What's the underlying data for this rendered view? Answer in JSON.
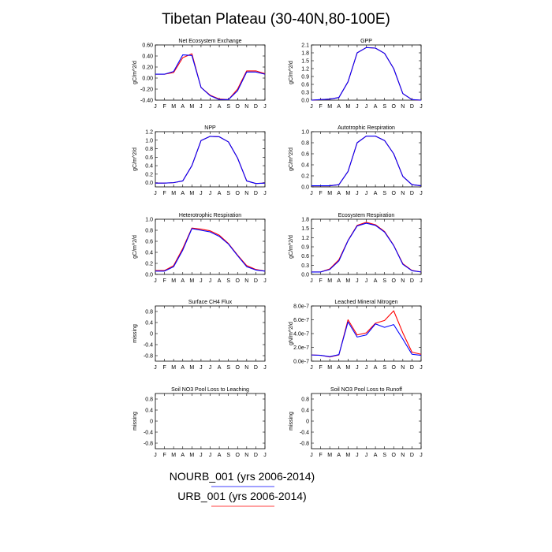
{
  "title": "Tibetan Plateau (30-40N,80-100E)",
  "colors": {
    "series_blue": "#0000ff",
    "series_red": "#ff0000",
    "axis": "#000000"
  },
  "legend": {
    "placement": "bottom-center",
    "entries": [
      {
        "label": "NOURB_001 (yrs 2006-2014)",
        "color": "#0000ff"
      },
      {
        "label": "URB_001 (yrs 2006-2014)",
        "color": "#ff0000"
      }
    ]
  },
  "chart_data": [
    {
      "type": "line",
      "title": "Net Ecosystem Exchange",
      "ylabel": "gC/m^2/d",
      "categories": [
        "J",
        "F",
        "M",
        "A",
        "M",
        "J",
        "J",
        "A",
        "S",
        "O",
        "N",
        "D",
        "J"
      ],
      "ylim": [
        -0.4,
        0.6
      ],
      "yticks": [
        "-0.40",
        "-0.20",
        "0.00",
        "0.20",
        "0.40",
        "0.60"
      ],
      "ytick_values": [
        -0.4,
        -0.2,
        0.0,
        0.2,
        0.4,
        0.6
      ],
      "series": [
        {
          "name": "NOURB_001 (yrs 2006-2014)",
          "color": "#0000ff",
          "values": [
            0.07,
            0.07,
            0.12,
            0.42,
            0.41,
            -0.17,
            -0.32,
            -0.39,
            -0.39,
            -0.23,
            0.11,
            0.11,
            0.07
          ]
        },
        {
          "name": "URB_001 (yrs 2006-2014)",
          "color": "#ff0000",
          "values": [
            0.07,
            0.07,
            0.1,
            0.37,
            0.44,
            -0.17,
            -0.31,
            -0.38,
            -0.39,
            -0.2,
            0.13,
            0.13,
            0.08
          ]
        }
      ]
    },
    {
      "type": "line",
      "title": "GPP",
      "ylabel": "gC/m^2/d",
      "categories": [
        "J",
        "F",
        "M",
        "A",
        "M",
        "J",
        "J",
        "A",
        "S",
        "O",
        "N",
        "D",
        "J"
      ],
      "ylim": [
        0.0,
        2.1
      ],
      "yticks": [
        "0.0",
        "0.3",
        "0.6",
        "0.9",
        "1.2",
        "1.5",
        "1.8",
        "2.1"
      ],
      "ytick_values": [
        0,
        0.3,
        0.6,
        0.9,
        1.2,
        1.5,
        1.8,
        2.1
      ],
      "series": [
        {
          "name": "NOURB_001 (yrs 2006-2014)",
          "color": "#0000ff",
          "values": [
            0.0,
            0.02,
            0.04,
            0.1,
            0.7,
            1.8,
            2.0,
            1.98,
            1.78,
            1.2,
            0.25,
            0.02,
            0.0
          ]
        },
        {
          "name": "URB_001 (yrs 2006-2014)",
          "color": "#ff0000",
          "values": [
            0.0,
            0.02,
            0.04,
            0.1,
            0.7,
            1.8,
            2.0,
            1.98,
            1.78,
            1.2,
            0.25,
            0.02,
            0.0
          ]
        }
      ]
    },
    {
      "type": "line",
      "title": "NPP",
      "ylabel": "gC/m^2/d",
      "categories": [
        "J",
        "F",
        "M",
        "A",
        "M",
        "J",
        "J",
        "A",
        "S",
        "O",
        "N",
        "D",
        "J"
      ],
      "ylim": [
        -0.1,
        1.2
      ],
      "yticks": [
        "0.0",
        "0.2",
        "0.4",
        "0.6",
        "0.8",
        "1.0",
        "1.2"
      ],
      "ytick_values": [
        0,
        0.2,
        0.4,
        0.6,
        0.8,
        1.0,
        1.2
      ],
      "series": [
        {
          "name": "NOURB_001 (yrs 2006-2014)",
          "color": "#0000ff",
          "values": [
            -0.01,
            -0.01,
            0.0,
            0.04,
            0.4,
            0.99,
            1.09,
            1.08,
            0.96,
            0.58,
            0.04,
            -0.02,
            -0.01
          ]
        },
        {
          "name": "URB_001 (yrs 2006-2014)",
          "color": "#ff0000",
          "values": [
            -0.01,
            -0.01,
            0.0,
            0.04,
            0.4,
            0.99,
            1.09,
            1.08,
            0.96,
            0.58,
            0.04,
            -0.02,
            -0.01
          ]
        }
      ]
    },
    {
      "type": "line",
      "title": "Autotrophic Respiration",
      "ylabel": "gC/m^2/d",
      "categories": [
        "J",
        "F",
        "M",
        "A",
        "M",
        "J",
        "J",
        "A",
        "S",
        "O",
        "N",
        "D",
        "J"
      ],
      "ylim": [
        0.0,
        1.0
      ],
      "yticks": [
        "0.0",
        "0.2",
        "0.4",
        "0.6",
        "0.8",
        "1.0"
      ],
      "ytick_values": [
        0,
        0.2,
        0.4,
        0.6,
        0.8,
        1.0
      ],
      "series": [
        {
          "name": "NOURB_001 (yrs 2006-2014)",
          "color": "#0000ff",
          "values": [
            0.02,
            0.02,
            0.02,
            0.04,
            0.28,
            0.8,
            0.92,
            0.92,
            0.84,
            0.6,
            0.19,
            0.04,
            0.02
          ]
        },
        {
          "name": "URB_001 (yrs 2006-2014)",
          "color": "#ff0000",
          "values": [
            0.02,
            0.02,
            0.02,
            0.04,
            0.28,
            0.8,
            0.92,
            0.92,
            0.84,
            0.6,
            0.19,
            0.04,
            0.02
          ]
        }
      ]
    },
    {
      "type": "line",
      "title": "Heterotrophic Respiration",
      "ylabel": "gC/m^2/d",
      "categories": [
        "J",
        "F",
        "M",
        "A",
        "M",
        "J",
        "J",
        "A",
        "S",
        "O",
        "N",
        "D",
        "J"
      ],
      "ylim": [
        0.0,
        1.0
      ],
      "yticks": [
        "0.0",
        "0.2",
        "0.4",
        "0.6",
        "0.8",
        "1.0"
      ],
      "ytick_values": [
        0,
        0.2,
        0.4,
        0.6,
        0.8,
        1.0
      ],
      "series": [
        {
          "name": "NOURB_001 (yrs 2006-2014)",
          "color": "#0000ff",
          "values": [
            0.06,
            0.06,
            0.14,
            0.44,
            0.83,
            0.8,
            0.77,
            0.69,
            0.55,
            0.34,
            0.14,
            0.08,
            0.06
          ]
        },
        {
          "name": "URB_001 (yrs 2006-2014)",
          "color": "#ff0000",
          "values": [
            0.07,
            0.07,
            0.16,
            0.47,
            0.84,
            0.82,
            0.79,
            0.71,
            0.56,
            0.35,
            0.16,
            0.09,
            0.06
          ]
        }
      ]
    },
    {
      "type": "line",
      "title": "Ecosystem Respiration",
      "ylabel": "gC/m^2/d",
      "categories": [
        "J",
        "F",
        "M",
        "A",
        "M",
        "J",
        "J",
        "A",
        "S",
        "O",
        "N",
        "D",
        "J"
      ],
      "ylim": [
        0.0,
        1.8
      ],
      "yticks": [
        "0.0",
        "0.3",
        "0.6",
        "0.9",
        "1.2",
        "1.5",
        "1.8"
      ],
      "ytick_values": [
        0,
        0.3,
        0.6,
        0.9,
        1.2,
        1.5,
        1.8
      ],
      "series": [
        {
          "name": "NOURB_001 (yrs 2006-2014)",
          "color": "#0000ff",
          "values": [
            0.08,
            0.08,
            0.16,
            0.44,
            1.1,
            1.58,
            1.67,
            1.6,
            1.38,
            0.94,
            0.33,
            0.12,
            0.08
          ]
        },
        {
          "name": "URB_001 (yrs 2006-2014)",
          "color": "#ff0000",
          "values": [
            0.08,
            0.08,
            0.18,
            0.48,
            1.11,
            1.6,
            1.7,
            1.62,
            1.4,
            0.95,
            0.35,
            0.13,
            0.08
          ]
        }
      ]
    },
    {
      "type": "line",
      "title": "Surface CH4 Flux",
      "ylabel": "missing",
      "categories": [
        "J",
        "F",
        "M",
        "A",
        "M",
        "J",
        "J",
        "A",
        "S",
        "O",
        "N",
        "D",
        "J"
      ],
      "ylim": [
        -1.0,
        1.0
      ],
      "yticks": [
        "-0.8",
        "-0.4",
        "0",
        "0.4",
        "0.8"
      ],
      "ytick_values": [
        -0.8,
        -0.4,
        0,
        0.4,
        0.8
      ],
      "series": []
    },
    {
      "type": "line",
      "title": "Leached Mineral Nitrogen",
      "ylabel": "gN/m^2/d",
      "categories": [
        "J",
        "F",
        "M",
        "A",
        "M",
        "J",
        "J",
        "A",
        "S",
        "O",
        "N",
        "D",
        "J"
      ],
      "ylim": [
        0.0,
        8e-07
      ],
      "yticks": [
        "0.0e-7",
        "2.0e-7",
        "4.0e-7",
        "6.0e-7",
        "8.0e-7"
      ],
      "ytick_values": [
        0,
        2e-07,
        4e-07,
        6e-07,
        8e-07
      ],
      "series": [
        {
          "name": "NOURB_001 (yrs 2006-2014)",
          "color": "#0000ff",
          "values": [
            9e-08,
            8.5e-08,
            6.5e-08,
            9.5e-08,
            5.7e-07,
            3.5e-07,
            3.8e-07,
            5.4e-07,
            4.9e-07,
            5.3e-07,
            3.2e-07,
            1e-07,
            8.5e-08
          ]
        },
        {
          "name": "URB_001 (yrs 2006-2014)",
          "color": "#ff0000",
          "values": [
            9e-08,
            8.5e-08,
            6e-08,
            9e-08,
            6e-07,
            3.8e-07,
            4.1e-07,
            5.5e-07,
            5.9e-07,
            7.3e-07,
            4.1e-07,
            1.3e-07,
            1e-07
          ]
        }
      ]
    },
    {
      "type": "line",
      "title": "Soil NO3 Pool Loss to Leaching",
      "ylabel": "missing",
      "categories": [
        "J",
        "F",
        "M",
        "A",
        "M",
        "J",
        "J",
        "A",
        "S",
        "O",
        "N",
        "D",
        "J"
      ],
      "ylim": [
        -1.0,
        1.0
      ],
      "yticks": [
        "-0.8",
        "-0.4",
        "0",
        "0.4",
        "0.8"
      ],
      "ytick_values": [
        -0.8,
        -0.4,
        0,
        0.4,
        0.8
      ],
      "series": []
    },
    {
      "type": "line",
      "title": "Soil NO3 Pool Loss to Runoff",
      "ylabel": "missing",
      "categories": [
        "J",
        "F",
        "M",
        "A",
        "M",
        "J",
        "J",
        "A",
        "S",
        "O",
        "N",
        "D",
        "J"
      ],
      "ylim": [
        -1.0,
        1.0
      ],
      "yticks": [
        "-0.8",
        "-0.4",
        "0",
        "0.4",
        "0.8"
      ],
      "ytick_values": [
        -0.8,
        -0.4,
        0,
        0.4,
        0.8
      ],
      "series": []
    }
  ]
}
